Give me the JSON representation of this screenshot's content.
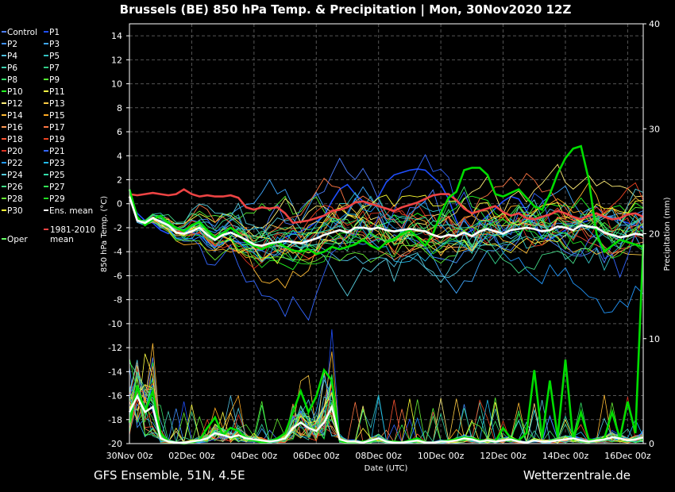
{
  "chart_data": {
    "type": "line",
    "title": "Brussels  (BE)  850 hPa Temp. & Precipitation | Mon, 30Nov2020 12Z",
    "footer_left": "GFS Ensemble, 51N, 4.5E",
    "footer_right": "Wetterzentrale.de",
    "xlabel": "Date (UTC)",
    "ylabel": "850 hPa Temp. (°C)",
    "y2label": "Precipitation (mm)",
    "ylim": [
      -20,
      15
    ],
    "y2lim": [
      0,
      40
    ],
    "x_tick_labels": [
      "30Nov 00z",
      "02Dec 00z",
      "04Dec 00z",
      "06Dec 00z",
      "08Dec 00z",
      "10Dec 00z",
      "12Dec 00z",
      "14Dec 00z",
      "16Dec 00z"
    ],
    "y_ticks": [
      -20,
      -18,
      -16,
      -14,
      -12,
      -10,
      -8,
      -6,
      -4,
      -2,
      0,
      2,
      4,
      6,
      8,
      10,
      12,
      14
    ],
    "y2_ticks": [
      0,
      10,
      20,
      30,
      40
    ],
    "grid": true,
    "legend_position": "left",
    "colors": {
      "Control": "#4d7fff",
      "P1": "#1f4fff",
      "P2": "#3f8fff",
      "P3": "#3fa8ff",
      "P4": "#4fbfe0",
      "P5": "#33c0c0",
      "P6": "#40d0b0",
      "P7": "#33cc88",
      "P8": "#33dd66",
      "P9": "#55ee33",
      "P10": "#22ff22",
      "P11": "#ffff44",
      "P12": "#ffee77",
      "P13": "#ffcc44",
      "P14": "#ffbb33",
      "P15": "#ffaa22",
      "P16": "#ff9955",
      "P17": "#ff7744",
      "P18": "#ff5533",
      "P19": "#ee4422",
      "P20": "#dd3322",
      "P21": "#3366ff",
      "P22": "#2299ff",
      "P23": "#22bbee",
      "P24": "#55ccdd",
      "P25": "#33ddaa",
      "P26": "#44dd88",
      "P27": "#33ee55",
      "P28": "#66ee33",
      "P29": "#22dd22",
      "P30": "#ffff33",
      "ens_mean": "#ffffff",
      "oper": "#66ff66",
      "climo": "#ee4444"
    },
    "legend": [
      [
        "Control",
        "P1"
      ],
      [
        "P2",
        "P3"
      ],
      [
        "P4",
        "P5"
      ],
      [
        "P6",
        "P7"
      ],
      [
        "P8",
        "P9"
      ],
      [
        "P10",
        "P11"
      ],
      [
        "P12",
        "P13"
      ],
      [
        "P14",
        "P15"
      ],
      [
        "P16",
        "P17"
      ],
      [
        "P18",
        "P19"
      ],
      [
        "P20",
        "P21"
      ],
      [
        "P22",
        "P23"
      ],
      [
        "P24",
        "P25"
      ],
      [
        "P26",
        "P27"
      ],
      [
        "P28",
        "P29"
      ],
      [
        "P30",
        "Ens. mean"
      ]
    ],
    "legend_extra": [
      "Oper",
      "1981-2010",
      "mean"
    ],
    "x_step_hours": 6,
    "x_days": 17,
    "climo_mean": [
      0.8,
      0.7,
      0.8,
      0.9,
      0.8,
      0.7,
      0.8,
      1.2,
      0.8,
      0.6,
      0.7,
      0.6,
      0.6,
      0.7,
      0.5,
      -0.3,
      -0.5,
      -0.3,
      -0.4,
      -0.3,
      -0.8,
      -1.6,
      -1.5,
      -1.4,
      -1.2,
      -1.0,
      -0.6,
      -0.5,
      -0.3,
      0.1,
      0.2,
      0.0,
      -0.2,
      -0.4,
      -0.6,
      -0.3,
      -0.1,
      0.1,
      0.4,
      0.7,
      0.8,
      0.8,
      0.3,
      -0.4,
      -0.8,
      -0.6,
      -0.4,
      -0.2,
      -0.7,
      -1.0,
      -0.8,
      -1.2,
      -1.3,
      -1.1,
      -0.9,
      -0.6,
      -0.8,
      -1.1,
      -1.3,
      -1.0,
      -0.8,
      -1.1,
      -1.3,
      -1.2,
      -0.9,
      -0.8,
      -1.1
    ],
    "ens_mean": [
      0.6,
      -1.4,
      -1.6,
      -1.2,
      -1.5,
      -1.8,
      -2.4,
      -2.5,
      -2.3,
      -2.0,
      -2.6,
      -3.0,
      -2.6,
      -2.4,
      -2.7,
      -3.0,
      -3.4,
      -3.5,
      -3.3,
      -3.2,
      -3.1,
      -3.2,
      -3.3,
      -3.1,
      -2.9,
      -2.6,
      -2.4,
      -2.2,
      -2.4,
      -2.0,
      -2.0,
      -2.1,
      -2.0,
      -2.2,
      -2.3,
      -2.2,
      -2.1,
      -2.2,
      -2.3,
      -2.6,
      -2.8,
      -2.6,
      -2.7,
      -2.4,
      -2.7,
      -2.3,
      -2.1,
      -2.3,
      -2.5,
      -2.2,
      -2.1,
      -2.0,
      -2.1,
      -2.3,
      -2.2,
      -1.9,
      -2.0,
      -2.2,
      -1.8,
      -1.9,
      -2.0,
      -2.4,
      -2.6,
      -2.8,
      -2.7,
      -2.5,
      -2.6
    ],
    "oper": [
      1.2,
      -1.1,
      -1.8,
      -1.3,
      -1.0,
      -1.6,
      -2.0,
      -2.3,
      -1.8,
      -1.5,
      -2.2,
      -2.8,
      -2.5,
      -2.0,
      -2.5,
      -3.2,
      -3.5,
      -3.8,
      -3.5,
      -3.2,
      -3.6,
      -3.9,
      -4.0,
      -3.8,
      -4.2,
      -4.0,
      -3.6,
      -3.8,
      -3.6,
      -3.4,
      -3.0,
      -3.5,
      -3.8,
      -3.2,
      -3.0,
      -2.5,
      -2.2,
      -2.8,
      -3.5,
      -2.5,
      -0.8,
      0.5,
      1.0,
      2.8,
      3.0,
      3.0,
      2.4,
      0.8,
      0.6,
      0.9,
      1.2,
      0.5,
      -0.2,
      -0.5,
      0.8,
      2.5,
      3.8,
      4.6,
      4.8,
      2.0,
      -2.5,
      -4.0,
      -3.5,
      -3.0,
      -3.2,
      -3.4,
      -3.6
    ],
    "p1": [
      0.5,
      -0.8,
      -1.4,
      -1.6,
      -2.2,
      -2.5,
      -2.0,
      -2.6,
      -2.4,
      -2.6,
      -3.2,
      -3.6,
      -3.3,
      -3.0,
      -3.2,
      -3.6,
      -3.8,
      -3.9,
      -3.4,
      -3.2,
      -2.8,
      -2.5,
      -2.3,
      -2.0,
      -1.5,
      -1.0,
      0.2,
      1.2,
      1.6,
      0.8,
      0.2,
      -0.2,
      0.6,
      1.8,
      2.4,
      2.6,
      2.8,
      2.9,
      2.8,
      2.2,
      1.6,
      0.4,
      -1.4,
      -2.6,
      -2.2,
      -1.6,
      -1.0,
      -0.4,
      0.2,
      0.6,
      0.4,
      -0.6,
      -1.8,
      -2.8,
      -3.0,
      -2.6,
      -2.2,
      -1.8,
      -1.6,
      -1.4,
      -1.2,
      -1.0,
      -1.2,
      -1.4,
      -1.6,
      -1.8,
      -2.0
    ],
    "precip_mean": [
      3,
      4.5,
      3,
      3.5,
      0.5,
      0.2,
      0.1,
      0.1,
      0.2,
      0.3,
      0.5,
      1.0,
      0.8,
      0.6,
      0.8,
      0.5,
      0.4,
      0.3,
      0.2,
      0.3,
      0.5,
      1.5,
      2.0,
      1.5,
      1.2,
      2.0,
      3.5,
      0.4,
      0.2,
      0.2,
      0.1,
      0.3,
      0.5,
      0.2,
      0.1,
      0.1,
      0.2,
      0.3,
      0.1,
      0.1,
      0.2,
      0.2,
      0.3,
      0.5,
      0.4,
      0.2,
      0.3,
      0.2,
      0.3,
      0.4,
      0.2,
      0.1,
      0.3,
      0.2,
      0.2,
      0.3,
      0.4,
      0.5,
      0.3,
      0.2,
      0.3,
      0.4,
      0.6,
      0.5,
      0.3,
      0.4,
      0.6
    ],
    "precip_oper": [
      2,
      5.5,
      3,
      5,
      1,
      0.2,
      0.1,
      0,
      0.1,
      0.3,
      1.5,
      2.5,
      0.8,
      1.5,
      1.2,
      0.5,
      0.3,
      0.1,
      0.2,
      0.5,
      1.0,
      3,
      5,
      3,
      4.5,
      7,
      6,
      0.3,
      0.1,
      0.1,
      0.2,
      0.3,
      0.5,
      0.2,
      0.2,
      0.1,
      0.3,
      0.5,
      0.1,
      0.1,
      0.2,
      0.3,
      0.4,
      0.6,
      0.5,
      0.3,
      0.3,
      0.2,
      1.5,
      0.5,
      0.3,
      1.0,
      7,
      0.5,
      6,
      0.6,
      8,
      0.3,
      3,
      0.4,
      0.3,
      0.5,
      3,
      0.5,
      4,
      1.0,
      19
    ]
  }
}
